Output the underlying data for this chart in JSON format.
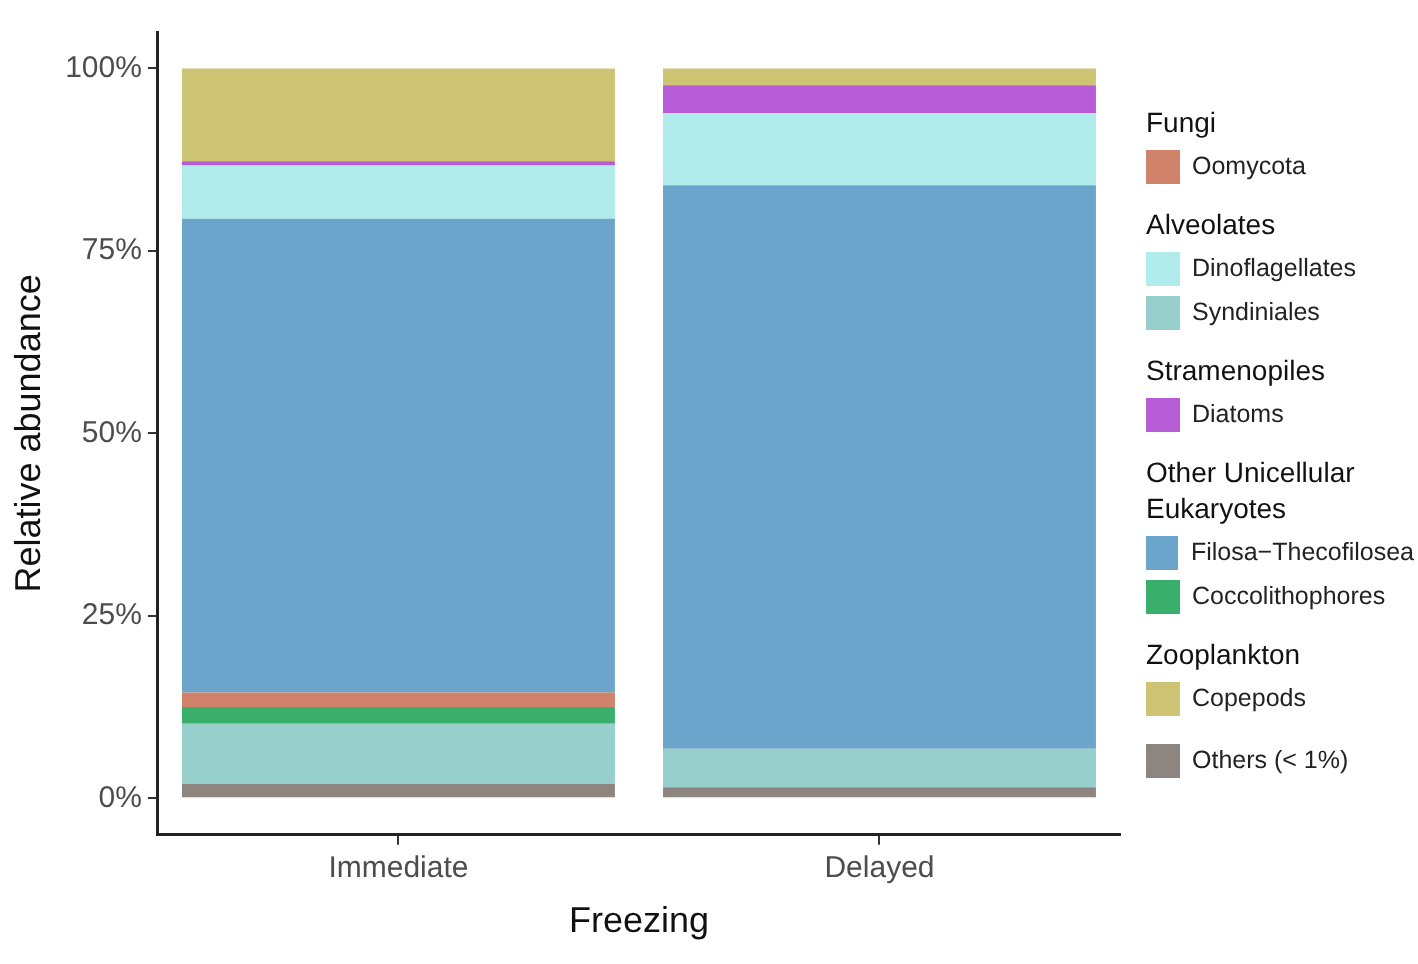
{
  "chart_data": {
    "type": "bar",
    "stacked": true,
    "categories": [
      "Immediate",
      "Delayed"
    ],
    "xlabel": "Freezing",
    "ylabel": "Relative abundance",
    "ylim": [
      -5,
      105
    ],
    "yticks": [
      {
        "value": 0,
        "label": "0%"
      },
      {
        "value": 25,
        "label": "25%"
      },
      {
        "value": 50,
        "label": "50%"
      },
      {
        "value": 75,
        "label": "75%"
      },
      {
        "value": 100,
        "label": "100%"
      }
    ],
    "grid": false,
    "legend": "right",
    "annotations": [
      "Fungi",
      "Alveolates",
      "Stramenopiles",
      "Other Unicellular Eukaryotes",
      "Zooplankton"
    ],
    "series": [
      {
        "name": "Others (< 1%)",
        "color": "#8c8580",
        "values": [
          2.0,
          1.5
        ]
      },
      {
        "name": "Syndiniales",
        "color": "#96cfcc",
        "values": [
          8.2,
          5.3
        ]
      },
      {
        "name": "Coccolithophores",
        "color": "#3aaf6c",
        "values": [
          2.3,
          0
        ]
      },
      {
        "name": "Oomycota",
        "color": "#d0826a",
        "values": [
          2.0,
          0
        ]
      },
      {
        "name": "Filosa−Thecofilosea",
        "color": "#6ca5cc",
        "values": [
          64.9,
          77.2
        ]
      },
      {
        "name": "Dinoflagellates",
        "color": "#b0ecec",
        "values": [
          7.3,
          9.9
        ]
      },
      {
        "name": "Diatoms",
        "color": "#b75bd6",
        "values": [
          0.6,
          3.8
        ]
      },
      {
        "name": "Copepods",
        "color": "#cdc474",
        "values": [
          12.7,
          2.3
        ]
      }
    ]
  }
}
